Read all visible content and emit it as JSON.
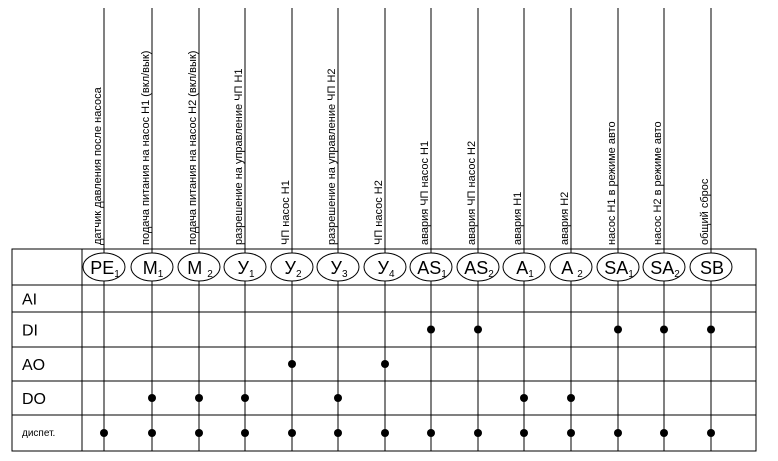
{
  "columns": [
    {
      "tag": "PE",
      "sub": "1",
      "label": "датчик давления после насоса"
    },
    {
      "tag": "M",
      "sub": "1",
      "label": "подача питания на насос Н1 (вкл/вык)"
    },
    {
      "tag": "M ",
      "sub": "2",
      "label": "подача питания на насос Н2 (вкл/вык)"
    },
    {
      "tag": "У",
      "sub": "1",
      "label": "разрешение на управление ЧП Н1"
    },
    {
      "tag": "У",
      "sub": "2",
      "label": "ЧП насос Н1"
    },
    {
      "tag": "У",
      "sub": "3",
      "label": "разрешение на управление ЧП Н2"
    },
    {
      "tag": "У",
      "sub": "4",
      "label": "ЧП насос Н2"
    },
    {
      "tag": "AS",
      "sub": "1",
      "label": "авария ЧП насос Н1"
    },
    {
      "tag": "AS",
      "sub": "2",
      "label": "авария ЧП насос Н2"
    },
    {
      "tag": "A",
      "sub": "1",
      "label": "авария Н1"
    },
    {
      "tag": "A ",
      "sub": "2",
      "label": "авария Н2"
    },
    {
      "tag": "SA",
      "sub": "1",
      "label": "насос Н1 в режиме авто"
    },
    {
      "tag": "SA",
      "sub": "2",
      "label": "насос Н2 в режиме авто"
    },
    {
      "tag": "SB",
      "sub": "",
      "label": "общий сброс"
    }
  ],
  "rows": [
    {
      "label": "AI",
      "dots": []
    },
    {
      "label": "DI",
      "dots": [
        7,
        8,
        11,
        12,
        13
      ]
    },
    {
      "label": "AO",
      "dots": [
        4,
        6
      ]
    },
    {
      "label": "DO",
      "dots": [
        1,
        2,
        3,
        5,
        9,
        10
      ]
    },
    {
      "label": "диспет.",
      "dots": [
        0,
        1,
        2,
        3,
        4,
        5,
        6,
        7,
        8,
        9,
        10,
        11,
        12,
        13
      ]
    }
  ]
}
